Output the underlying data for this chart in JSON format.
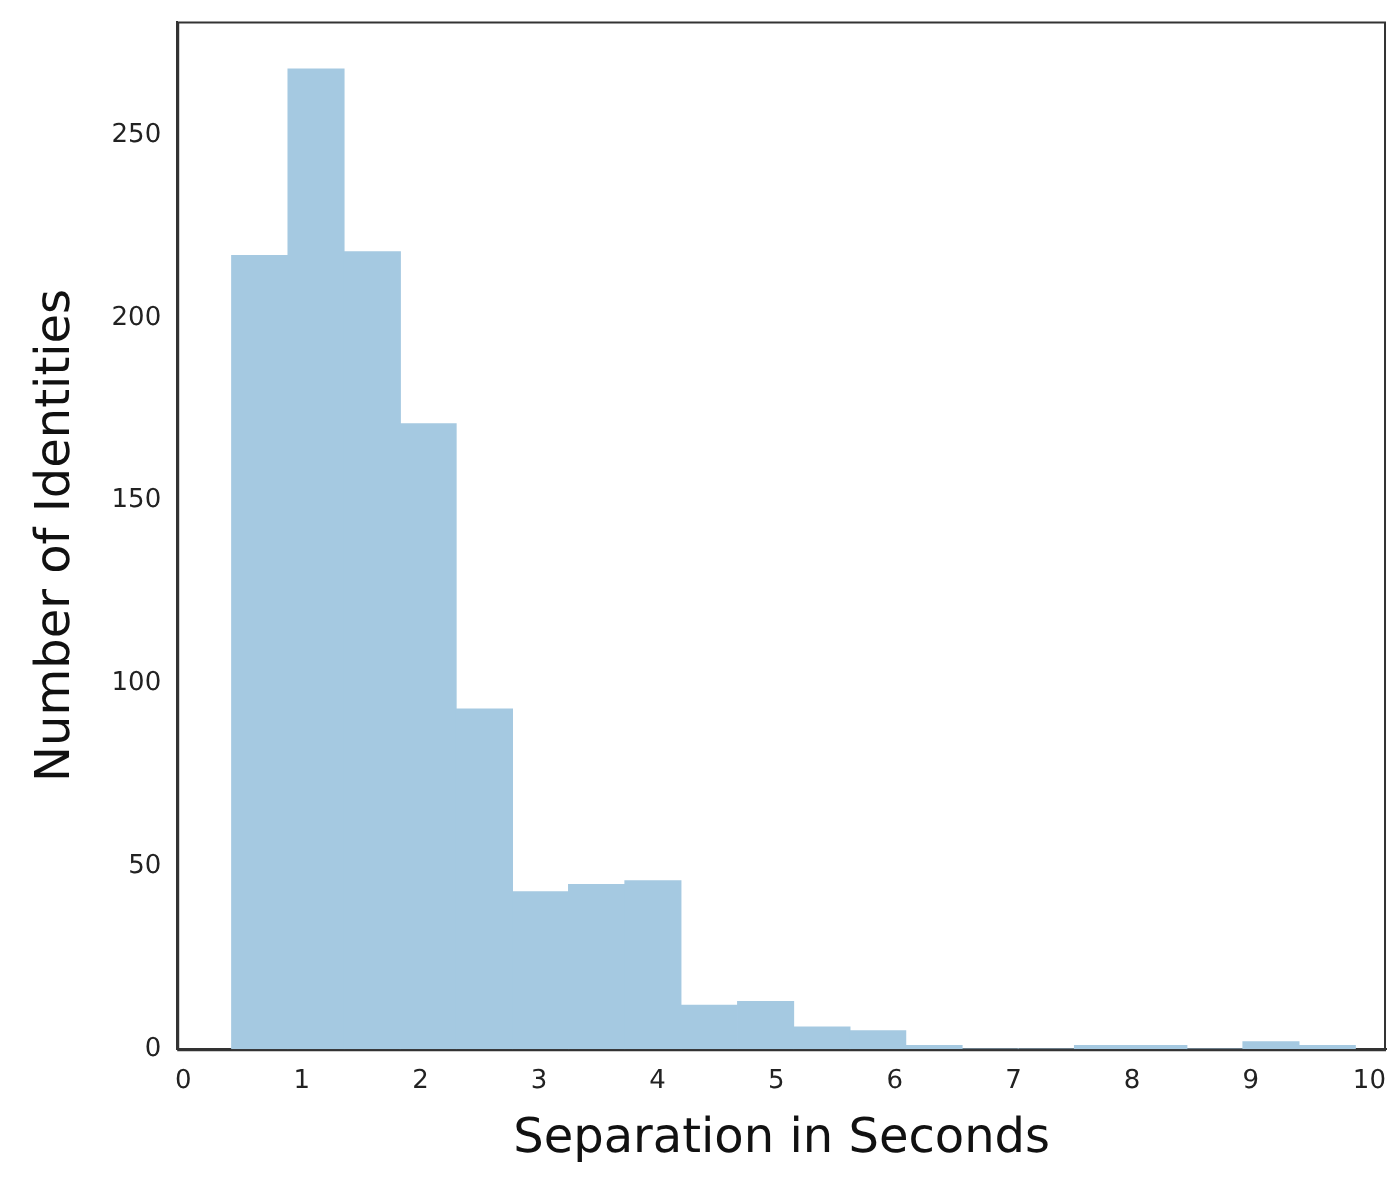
{
  "chart_data": {
    "type": "histogram",
    "xlabel": "Separation in Seconds",
    "ylabel": "Number of Identities",
    "bins": [
      0.41,
      0.88,
      1.36,
      1.83,
      2.3,
      2.78,
      3.25,
      3.72,
      4.2,
      4.67,
      5.15,
      5.62,
      6.09,
      6.57,
      7.04,
      7.51,
      7.99,
      8.46,
      8.93,
      9.41,
      9.88
    ],
    "values": [
      217,
      268,
      218,
      171,
      93,
      43,
      45,
      46,
      12,
      13,
      6,
      5,
      1,
      0,
      0,
      1,
      1,
      0,
      2,
      1
    ],
    "color": "#a5c9e1",
    "xlim": [
      -0.05,
      10.14
    ],
    "xticks": [
      0,
      1,
      2,
      3,
      4,
      5,
      6,
      7,
      8,
      9,
      10
    ],
    "ylim": [
      0,
      281
    ],
    "yticks": [
      0,
      50,
      100,
      150,
      200,
      250
    ],
    "grid": false,
    "legend": false
  }
}
